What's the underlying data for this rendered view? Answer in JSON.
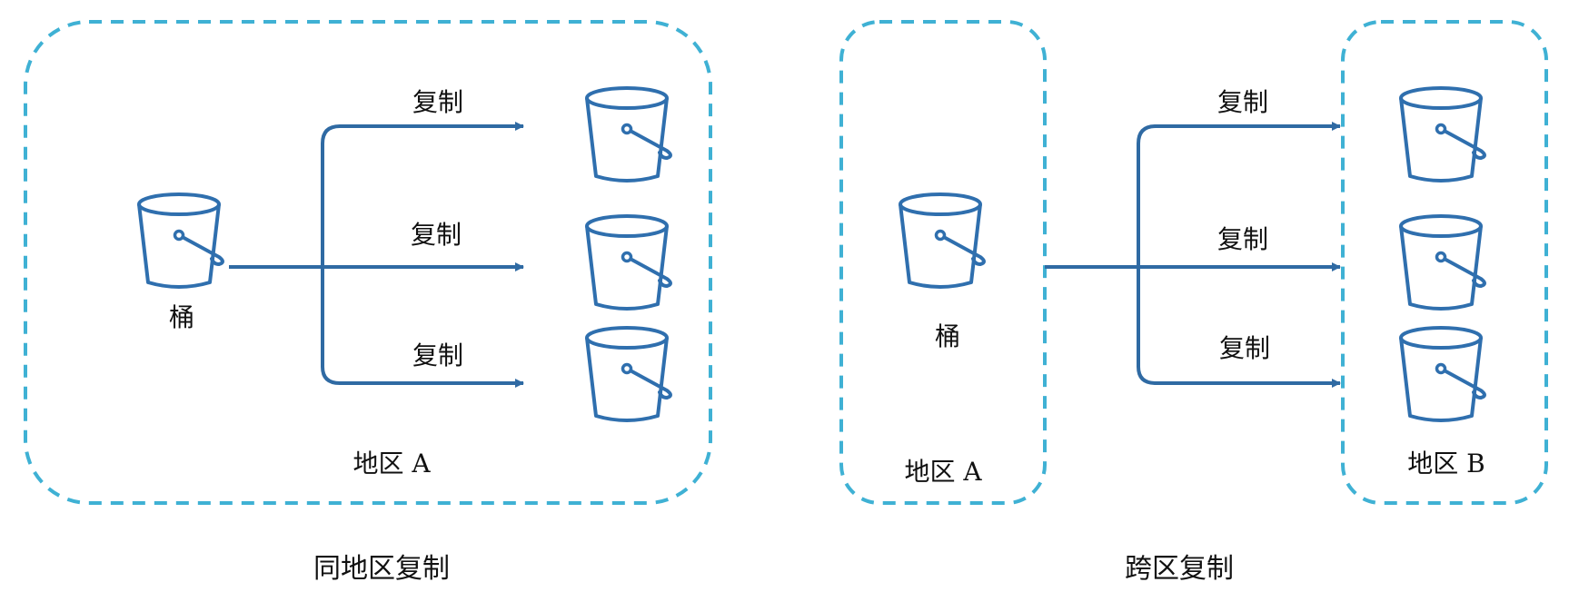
{
  "colors": {
    "region_border": "#3fb1d4",
    "arrow": "#2f6aa3",
    "bucket": "#2f6fae"
  },
  "same_region": {
    "source_label": "桶",
    "region_label": "地区 A",
    "copy_labels": [
      "复制",
      "复制",
      "复制"
    ],
    "caption": "同地区复制"
  },
  "cross_region": {
    "source_label": "桶",
    "source_region_label": "地区 A",
    "target_region_label": "地区 B",
    "copy_labels": [
      "复制",
      "复制",
      "复制"
    ],
    "caption": "跨区复制"
  }
}
